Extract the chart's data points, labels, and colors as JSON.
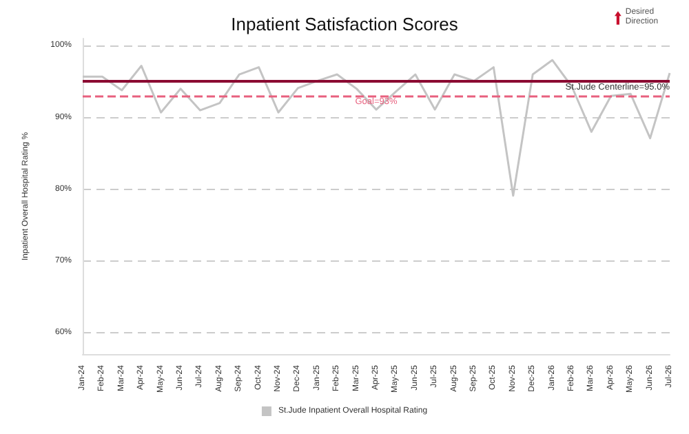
{
  "chart_data": {
    "type": "line",
    "title": "Inpatient Satisfaction Scores",
    "ylabel": "Inpatient Overall Hospital Rating %",
    "categories": [
      "Jan-24",
      "Feb-24",
      "Mar-24",
      "Apr-24",
      "May-24",
      "Jun-24",
      "Jul-24",
      "Aug-24",
      "Sep-24",
      "Oct-24",
      "Nov-24",
      "Dec-24",
      "Jan-25",
      "Feb-25",
      "Mar-25",
      "Apr-25",
      "May-25",
      "Jun-25",
      "Jul-25",
      "Aug-25",
      "Sep-25",
      "Oct-25",
      "Nov-25",
      "Dec-25",
      "Jan-26",
      "Feb-26",
      "Mar-26",
      "Apr-26",
      "May-26",
      "Jun-26",
      "Jul-26"
    ],
    "series": [
      {
        "name": "St.Jude Inpatient Overall Hospital Rating",
        "color": "#c4c4c4",
        "values": [
          95.7,
          95.7,
          93.8,
          97.2,
          90.7,
          94.0,
          91.0,
          92.0,
          96.0,
          97.0,
          90.7,
          94.1,
          95.1,
          96.0,
          94.0,
          91.1,
          93.6,
          96.0,
          91.1,
          96.0,
          95.1,
          97.0,
          79.1,
          96.0,
          98.0,
          94.3,
          88.0,
          93.0,
          93.3,
          87.1,
          96.2
        ]
      }
    ],
    "ylim": [
      57,
      101
    ],
    "yticks": [
      {
        "value": 60,
        "label": "60%"
      },
      {
        "value": 70,
        "label": "70%"
      },
      {
        "value": 80,
        "label": "80%"
      },
      {
        "value": 90,
        "label": "90%"
      },
      {
        "value": 100,
        "label": "100%"
      }
    ],
    "ref_lines": [
      {
        "axis": "y",
        "value": 95,
        "label": "St.Jude Centerline=95.0%",
        "color": "#8b0a32",
        "line_style": "solid"
      },
      {
        "axis": "y",
        "value": 93,
        "label": "Goal=93%",
        "color": "#e8607e",
        "line_style": "dashed"
      }
    ],
    "annotations": [
      "Desired Direction"
    ],
    "grid": "y",
    "legend": "bottom",
    "marker": "none",
    "line_style": "solid"
  }
}
